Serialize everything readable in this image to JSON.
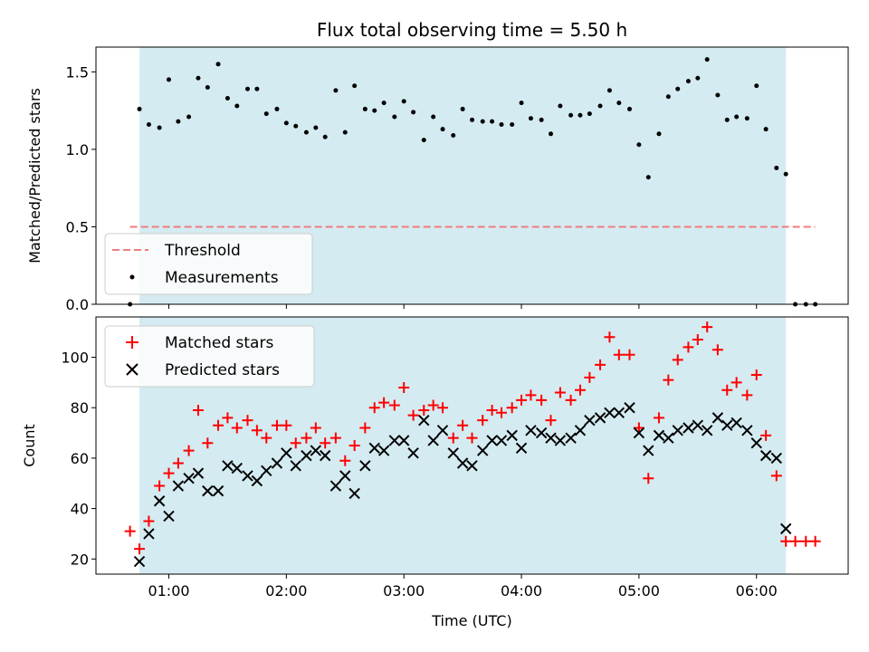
{
  "chart_data": [
    {
      "type": "scatter",
      "title": "Flux total observing time = 5.50 h",
      "ylabel": "Matched/Predicted stars",
      "xlabel": "",
      "xlim": [
        0.38,
        6.78
      ],
      "ylim": [
        0,
        1.66
      ],
      "yticks": [
        0.0,
        0.5,
        1.0,
        1.5
      ],
      "ytick_labels": [
        "0.0",
        "0.5",
        "1.0",
        "1.5"
      ],
      "xticks": [
        1,
        2,
        3,
        4,
        5,
        6
      ],
      "shaded_x": [
        0.75,
        6.25
      ],
      "shade_color": "#d4ebf1",
      "threshold": {
        "name": "Threshold",
        "value": 0.5,
        "x": [
          0.67,
          6.5
        ],
        "color": "#f07e7e"
      },
      "legend_position": "lower-left",
      "series": [
        {
          "name": "Measurements",
          "color": "#000000",
          "x": [
            0.67,
            0.75,
            0.83,
            0.92,
            1.0,
            1.08,
            1.17,
            1.25,
            1.33,
            1.42,
            1.5,
            1.58,
            1.67,
            1.75,
            1.83,
            1.92,
            2.0,
            2.08,
            2.17,
            2.25,
            2.33,
            2.42,
            2.5,
            2.58,
            2.67,
            2.75,
            2.83,
            2.92,
            3.0,
            3.08,
            3.17,
            3.25,
            3.33,
            3.42,
            3.5,
            3.58,
            3.67,
            3.75,
            3.83,
            3.92,
            4.0,
            4.08,
            4.17,
            4.25,
            4.33,
            4.42,
            4.5,
            4.58,
            4.67,
            4.75,
            4.83,
            4.92,
            5.0,
            5.08,
            5.17,
            5.25,
            5.33,
            5.42,
            5.5,
            5.58,
            5.67,
            5.75,
            5.83,
            5.92,
            6.0,
            6.08,
            6.17,
            6.25,
            6.33,
            6.42,
            6.5
          ],
          "y": [
            0.0,
            1.26,
            1.16,
            1.14,
            1.45,
            1.18,
            1.21,
            1.46,
            1.4,
            1.55,
            1.33,
            1.28,
            1.39,
            1.39,
            1.23,
            1.26,
            1.17,
            1.15,
            1.11,
            1.14,
            1.08,
            1.38,
            1.11,
            1.41,
            1.26,
            1.25,
            1.3,
            1.21,
            1.31,
            1.24,
            1.06,
            1.21,
            1.13,
            1.09,
            1.26,
            1.19,
            1.18,
            1.18,
            1.16,
            1.16,
            1.3,
            1.2,
            1.19,
            1.1,
            1.28,
            1.22,
            1.22,
            1.23,
            1.28,
            1.38,
            1.3,
            1.26,
            1.03,
            0.82,
            1.1,
            1.34,
            1.39,
            1.44,
            1.46,
            1.58,
            1.35,
            1.19,
            1.21,
            1.2,
            1.41,
            1.13,
            0.88,
            0.84,
            0.0,
            0.0,
            0.0
          ]
        }
      ]
    },
    {
      "type": "scatter",
      "title": "",
      "ylabel": "Count",
      "xlabel": "Time (UTC)",
      "xlim": [
        0.38,
        6.78
      ],
      "ylim": [
        14,
        116
      ],
      "yticks": [
        20,
        40,
        60,
        80,
        100
      ],
      "ytick_labels": [
        "20",
        "40",
        "60",
        "80",
        "100"
      ],
      "xticks": [
        1,
        2,
        3,
        4,
        5,
        6
      ],
      "xtick_labels": [
        "01:00",
        "02:00",
        "03:00",
        "04:00",
        "05:00",
        "06:00"
      ],
      "shaded_x": [
        0.75,
        6.25
      ],
      "shade_color": "#d4ebf1",
      "legend_position": "upper-left",
      "series": [
        {
          "name": "Matched stars",
          "marker": "+",
          "color": "#ff0000",
          "x": [
            0.67,
            0.75,
            0.83,
            0.92,
            1.0,
            1.08,
            1.17,
            1.25,
            1.33,
            1.42,
            1.5,
            1.58,
            1.67,
            1.75,
            1.83,
            1.92,
            2.0,
            2.08,
            2.17,
            2.25,
            2.33,
            2.42,
            2.5,
            2.58,
            2.67,
            2.75,
            2.83,
            2.92,
            3.0,
            3.08,
            3.17,
            3.25,
            3.33,
            3.42,
            3.5,
            3.58,
            3.67,
            3.75,
            3.83,
            3.92,
            4.0,
            4.08,
            4.17,
            4.25,
            4.33,
            4.42,
            4.5,
            4.58,
            4.67,
            4.75,
            4.83,
            4.92,
            5.0,
            5.08,
            5.17,
            5.25,
            5.33,
            5.42,
            5.5,
            5.58,
            5.67,
            5.75,
            5.83,
            5.92,
            6.0,
            6.08,
            6.17,
            6.25,
            6.33,
            6.42,
            6.5
          ],
          "y": [
            31,
            24,
            35,
            49,
            54,
            58,
            63,
            79,
            66,
            73,
            76,
            72,
            75,
            71,
            68,
            73,
            73,
            66,
            68,
            72,
            66,
            68,
            59,
            65,
            72,
            80,
            82,
            81,
            88,
            77,
            79,
            81,
            80,
            68,
            73,
            68,
            75,
            79,
            78,
            80,
            83,
            85,
            83,
            75,
            86,
            83,
            87,
            92,
            97,
            108,
            101,
            101,
            72,
            52,
            76,
            91,
            99,
            104,
            107,
            112,
            103,
            87,
            90,
            85,
            93,
            69,
            53,
            27,
            27,
            27,
            27
          ]
        },
        {
          "name": "Predicted stars",
          "marker": "x",
          "color": "#000000",
          "x": [
            0.75,
            0.83,
            0.92,
            1.0,
            1.08,
            1.17,
            1.25,
            1.33,
            1.42,
            1.5,
            1.58,
            1.67,
            1.75,
            1.83,
            1.92,
            2.0,
            2.08,
            2.17,
            2.25,
            2.33,
            2.42,
            2.5,
            2.58,
            2.67,
            2.75,
            2.83,
            2.92,
            3.0,
            3.08,
            3.17,
            3.25,
            3.33,
            3.42,
            3.5,
            3.58,
            3.67,
            3.75,
            3.83,
            3.92,
            4.0,
            4.08,
            4.17,
            4.25,
            4.33,
            4.42,
            4.5,
            4.58,
            4.67,
            4.75,
            4.83,
            4.92,
            5.0,
            5.08,
            5.17,
            5.25,
            5.33,
            5.42,
            5.5,
            5.58,
            5.67,
            5.75,
            5.83,
            5.92,
            6.0,
            6.08,
            6.17,
            6.25
          ],
          "y": [
            19,
            30,
            43,
            37,
            49,
            52,
            54,
            47,
            47,
            57,
            56,
            53,
            51,
            55,
            58,
            62,
            57,
            61,
            63,
            61,
            49,
            53,
            46,
            57,
            64,
            63,
            67,
            67,
            62,
            75,
            67,
            71,
            62,
            58,
            57,
            63,
            67,
            67,
            69,
            64,
            71,
            70,
            68,
            67,
            68,
            71,
            75,
            76,
            78,
            78,
            80,
            70,
            63,
            69,
            68,
            71,
            72,
            73,
            71,
            76,
            73,
            74,
            71,
            66,
            61,
            60,
            32
          ]
        }
      ]
    }
  ]
}
